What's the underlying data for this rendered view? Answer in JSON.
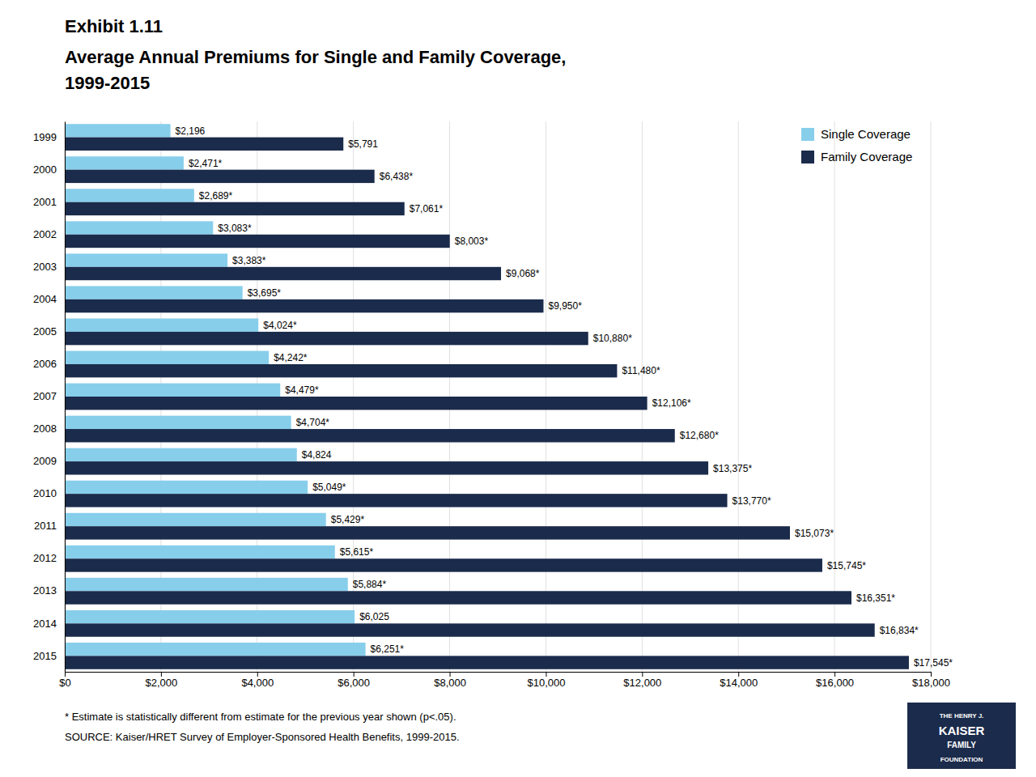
{
  "chart_data": {
    "type": "bar",
    "orientation": "horizontal",
    "title": "Exhibit 1.11",
    "subtitle": [
      "Average Annual Premiums for Single and Family Coverage,",
      "1999-2015"
    ],
    "categories": [
      "1999",
      "2000",
      "2001",
      "2002",
      "2003",
      "2004",
      "2005",
      "2006",
      "2007",
      "2008",
      "2009",
      "2010",
      "2011",
      "2012",
      "2013",
      "2014",
      "2015"
    ],
    "series": [
      {
        "name": "Single Coverage",
        "color": "#87CEEB",
        "values": [
          2196,
          2471,
          2689,
          3083,
          3383,
          3695,
          4024,
          4242,
          4479,
          4704,
          4824,
          5049,
          5429,
          5615,
          5884,
          6025,
          6251
        ],
        "value_labels": [
          "$2,196",
          "$2,471*",
          "$2,689*",
          "$3,083*",
          "$3,383*",
          "$3,695*",
          "$4,024*",
          "$4,242*",
          "$4,479*",
          "$4,704*",
          "$4,824",
          "$5,049*",
          "$5,429*",
          "$5,615*",
          "$5,884*",
          "$6,025",
          "$6,251*"
        ]
      },
      {
        "name": "Family Coverage",
        "color": "#1B2B4B",
        "values": [
          5791,
          6438,
          7061,
          8003,
          9068,
          9950,
          10880,
          11480,
          12106,
          12680,
          13375,
          13770,
          15073,
          15745,
          16351,
          16834,
          17545
        ],
        "value_labels": [
          "$5,791",
          "$6,438*",
          "$7,061*",
          "$8,003*",
          "$9,068*",
          "$9,950*",
          "$10,880*",
          "$11,480*",
          "$12,106*",
          "$12,680*",
          "$13,375*",
          "$13,770*",
          "$15,073*",
          "$15,745*",
          "$16,351*",
          "$16,834*",
          "$17,545*"
        ]
      }
    ],
    "xlim": [
      0,
      18000
    ],
    "xticks": [
      {
        "value": 0,
        "label": "$0"
      },
      {
        "value": 2000,
        "label": "$2,000"
      },
      {
        "value": 4000,
        "label": "$4,000"
      },
      {
        "value": 6000,
        "label": "$6,000"
      },
      {
        "value": 8000,
        "label": "$8,000"
      },
      {
        "value": 10000,
        "label": "$10,000"
      },
      {
        "value": 12000,
        "label": "$12,000"
      },
      {
        "value": 14000,
        "label": "$14,000"
      },
      {
        "value": 16000,
        "label": "$16,000"
      },
      {
        "value": 18000,
        "label": "$18,000"
      }
    ],
    "grid": true,
    "legend": "top-right",
    "data_labels": true,
    "annotations": [
      "* Estimate is statistically different from estimate for the previous year shown (p<.05).",
      "SOURCE:  Kaiser/HRET Survey of Employer-Sponsored Health Benefits, 1999-2015.",
      "THE HENRY J.",
      "KAISER",
      "FAMILY",
      "FOUNDATION"
    ]
  }
}
